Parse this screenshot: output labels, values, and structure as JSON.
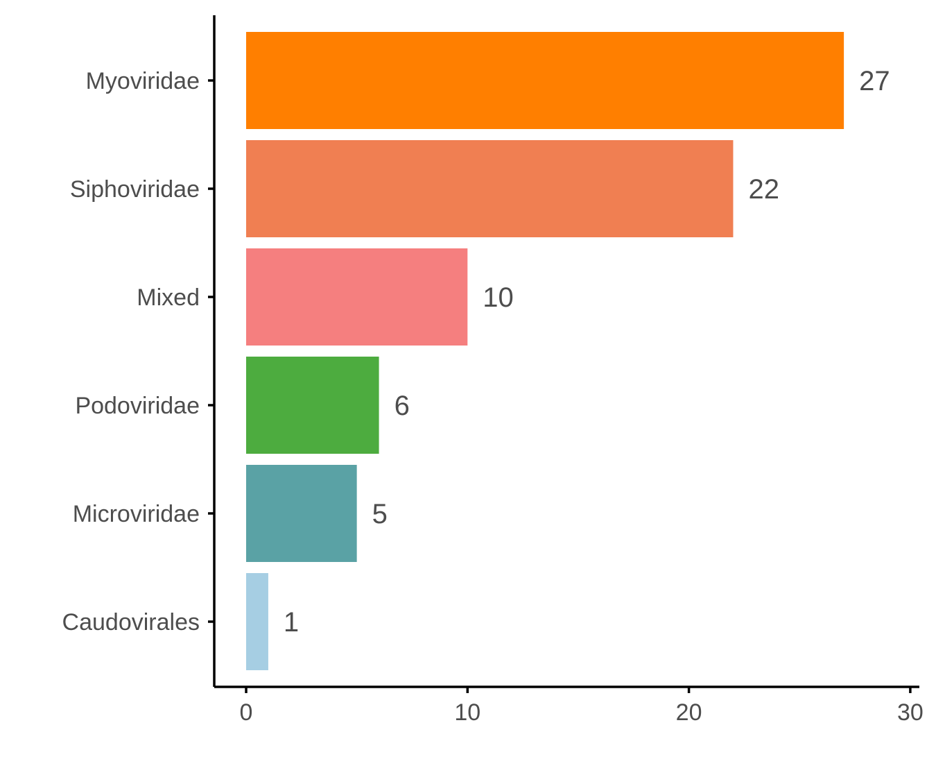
{
  "chart_data": {
    "type": "bar",
    "orientation": "horizontal",
    "categories": [
      "Myoviridae",
      "Siphoviridae",
      "Mixed",
      "Podoviridae",
      "Microviridae",
      "Caudovirales"
    ],
    "values": [
      27,
      22,
      10,
      6,
      5,
      1
    ],
    "value_labels": [
      "27",
      "22",
      "10",
      "6",
      "5",
      "1"
    ],
    "colors": [
      "#FF7F00",
      "#F07F52",
      "#F57F7F",
      "#4DAC3F",
      "#5AA2A5",
      "#A6CEE3"
    ],
    "xlim": [
      0,
      30
    ],
    "x_ticks": [
      0,
      10,
      20,
      30
    ],
    "x_tick_labels": [
      "0",
      "10",
      "20",
      "30"
    ],
    "title": "",
    "xlabel": "",
    "ylabel": "",
    "grid": false,
    "legend": "none"
  }
}
